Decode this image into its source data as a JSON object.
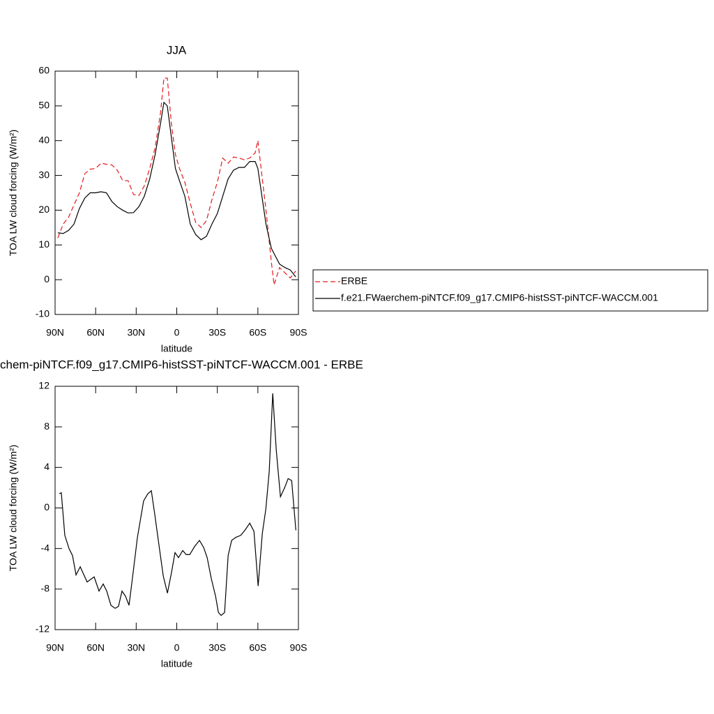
{
  "chart_data": [
    {
      "type": "line",
      "title": "JJA",
      "xlabel": "latitude",
      "ylabel": "TOA LW cloud forcing (W/m²)",
      "x": [
        88,
        84,
        80,
        76,
        72,
        68,
        64,
        60,
        56,
        52,
        48,
        44,
        40,
        36,
        32,
        28,
        24,
        20,
        16,
        12,
        9.5,
        7,
        4,
        1,
        -2,
        -6,
        -10,
        -14,
        -18,
        -22,
        -26,
        -30,
        -34,
        -38,
        -42,
        -46,
        -50,
        -54,
        -58,
        -60,
        -66,
        -70,
        -72,
        -76,
        -80,
        -84,
        -88
      ],
      "series": [
        {
          "name": "ERBE",
          "color": "#e41a1c",
          "style": "dashed",
          "values": [
            12,
            16,
            18,
            21.5,
            25,
            30.5,
            31.8,
            32,
            33.5,
            33.2,
            33,
            31.5,
            28.5,
            28.5,
            24.5,
            24.2,
            27,
            32,
            38,
            48,
            58,
            58,
            45,
            36,
            32,
            28,
            22,
            16.5,
            15,
            17,
            23,
            28,
            35,
            33.5,
            35.3,
            35,
            34.5,
            35,
            36.5,
            40,
            20,
            5,
            -1.5,
            3.5,
            2,
            0.5,
            2.5
          ]
        },
        {
          "name": "f.e21.FWaerchem-piNTCF.f09_g17.CMIP6-histSST-piNTCF-WACCM.001",
          "color": "#000000",
          "style": "solid",
          "values": [
            13.5,
            13.3,
            14.2,
            16,
            20.5,
            23.5,
            25,
            25,
            25.3,
            25,
            22.5,
            21,
            20,
            19.2,
            19.3,
            21,
            24,
            29,
            36,
            45,
            51,
            50,
            41,
            32,
            28.5,
            24,
            16,
            13,
            11.5,
            12.5,
            16,
            19,
            24,
            29,
            31.5,
            32.3,
            32.3,
            34,
            34,
            32,
            16,
            9,
            7.5,
            4.5,
            3.5,
            2.8,
            0.8
          ]
        }
      ],
      "xlim": [
        90,
        -90
      ],
      "xticks": [
        {
          "value": 90,
          "label": "90N"
        },
        {
          "value": 60,
          "label": "60N"
        },
        {
          "value": 30,
          "label": "30N"
        },
        0,
        {
          "value": -30,
          "label": "30S"
        },
        {
          "value": -60,
          "label": "60S"
        },
        {
          "value": -90,
          "label": "90S"
        }
      ],
      "ylim": [
        -10,
        60
      ],
      "yticks": [
        -10,
        0,
        10,
        20,
        30,
        40,
        50,
        60
      ],
      "grid": false,
      "legend": "right"
    },
    {
      "type": "line",
      "title": "chem-piNTCF.f09_g17.CMIP6-histSST-piNTCF-WACCM.001 - ERBE",
      "xlabel": "latitude",
      "ylabel": "TOA LW cloud forcing (W/m²)",
      "x": [
        86.9,
        85.4,
        82.8,
        79.7,
        77.1,
        74.5,
        71.4,
        66.3,
        61.1,
        57.5,
        54.4,
        51.8,
        48.7,
        45.6,
        43.1,
        40.5,
        37.9,
        35.3,
        32.2,
        29.1,
        24.5,
        21.4,
        18.8,
        16.2,
        12.6,
        10.0,
        6.9,
        3.8,
        1.3,
        -1.3,
        -4.4,
        -7.0,
        -9.6,
        -13.2,
        -16.8,
        -19.9,
        -22.5,
        -25.6,
        -28.7,
        -30.8,
        -32.8,
        -35.4,
        -38.0,
        -40.6,
        -43.7,
        -47.3,
        -50.4,
        -54.0,
        -57.1,
        -60.2,
        -63.3,
        -65.9,
        -68.4,
        -71.0,
        -73.6,
        -76.7,
        -79.8,
        -82.4,
        -85.0,
        -88.1
      ],
      "series": [
        {
          "color": "#000000",
          "style": "solid",
          "values": [
            1.4,
            1.5,
            -2.7,
            -4,
            -4.7,
            -6.6,
            -5.8,
            -7.3,
            -6.8,
            -8.2,
            -7.5,
            -8.2,
            -9.6,
            -9.9,
            -9.7,
            -8.2,
            -8.7,
            -9.6,
            -6.3,
            -2.9,
            0.7,
            1.4,
            1.7,
            -0.7,
            -4.2,
            -6.7,
            -8.4,
            -6.3,
            -4.4,
            -4.9,
            -4.2,
            -4.6,
            -4.6,
            -3.8,
            -3.2,
            -3.9,
            -4.9,
            -7,
            -8.7,
            -10.3,
            -10.6,
            -10.3,
            -4.7,
            -3.2,
            -2.9,
            -2.7,
            -2.2,
            -1.5,
            -2.3,
            -7.7,
            -2.5,
            -0.1,
            3.6,
            11.3,
            5.7,
            1.1,
            2,
            2.9,
            2.7,
            -2.2
          ]
        }
      ],
      "xlim": [
        90,
        -90
      ],
      "xticks": [
        {
          "value": 90,
          "label": "90N"
        },
        {
          "value": 60,
          "label": "60N"
        },
        {
          "value": 30,
          "label": "30N"
        },
        0,
        {
          "value": -30,
          "label": "30S"
        },
        {
          "value": -60,
          "label": "60S"
        },
        {
          "value": -90,
          "label": "90S"
        }
      ],
      "ylim": [
        -12,
        12
      ],
      "yticks": [
        -12,
        -8,
        -4,
        0,
        4,
        8,
        12
      ],
      "grid": false
    }
  ]
}
